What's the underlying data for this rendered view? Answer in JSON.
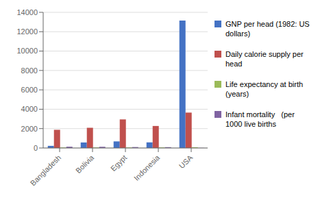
{
  "chart_data": {
    "type": "bar",
    "categories": [
      "Bangladesh",
      "Bolivia",
      "Egypt",
      "Indonesia",
      "USA"
    ],
    "series": [
      {
        "name": "GNP per head (1982: US\ndollars)",
        "color": "#4472C4",
        "values": [
          220,
          570,
          680,
          580,
          13160
        ]
      },
      {
        "name": "Daily calorie supply per\nhead",
        "color": "#C0504D",
        "values": [
          1877,
          2086,
          2950,
          2272,
          3652
        ]
      },
      {
        "name": "Life expectancy at birth\n(years)",
        "color": "#9BBB59",
        "values": [
          49,
          53,
          57,
          55,
          76
        ]
      },
      {
        "name": "Infant mortality   (per\n1000 live births",
        "color": "#8064A2",
        "values": [
          132,
          124,
          97,
          87,
          12
        ]
      }
    ],
    "ylim": [
      0,
      14000
    ],
    "yticks": [
      0,
      2000,
      4000,
      6000,
      8000,
      10000,
      12000,
      14000
    ],
    "grid": true,
    "legend": "right"
  }
}
